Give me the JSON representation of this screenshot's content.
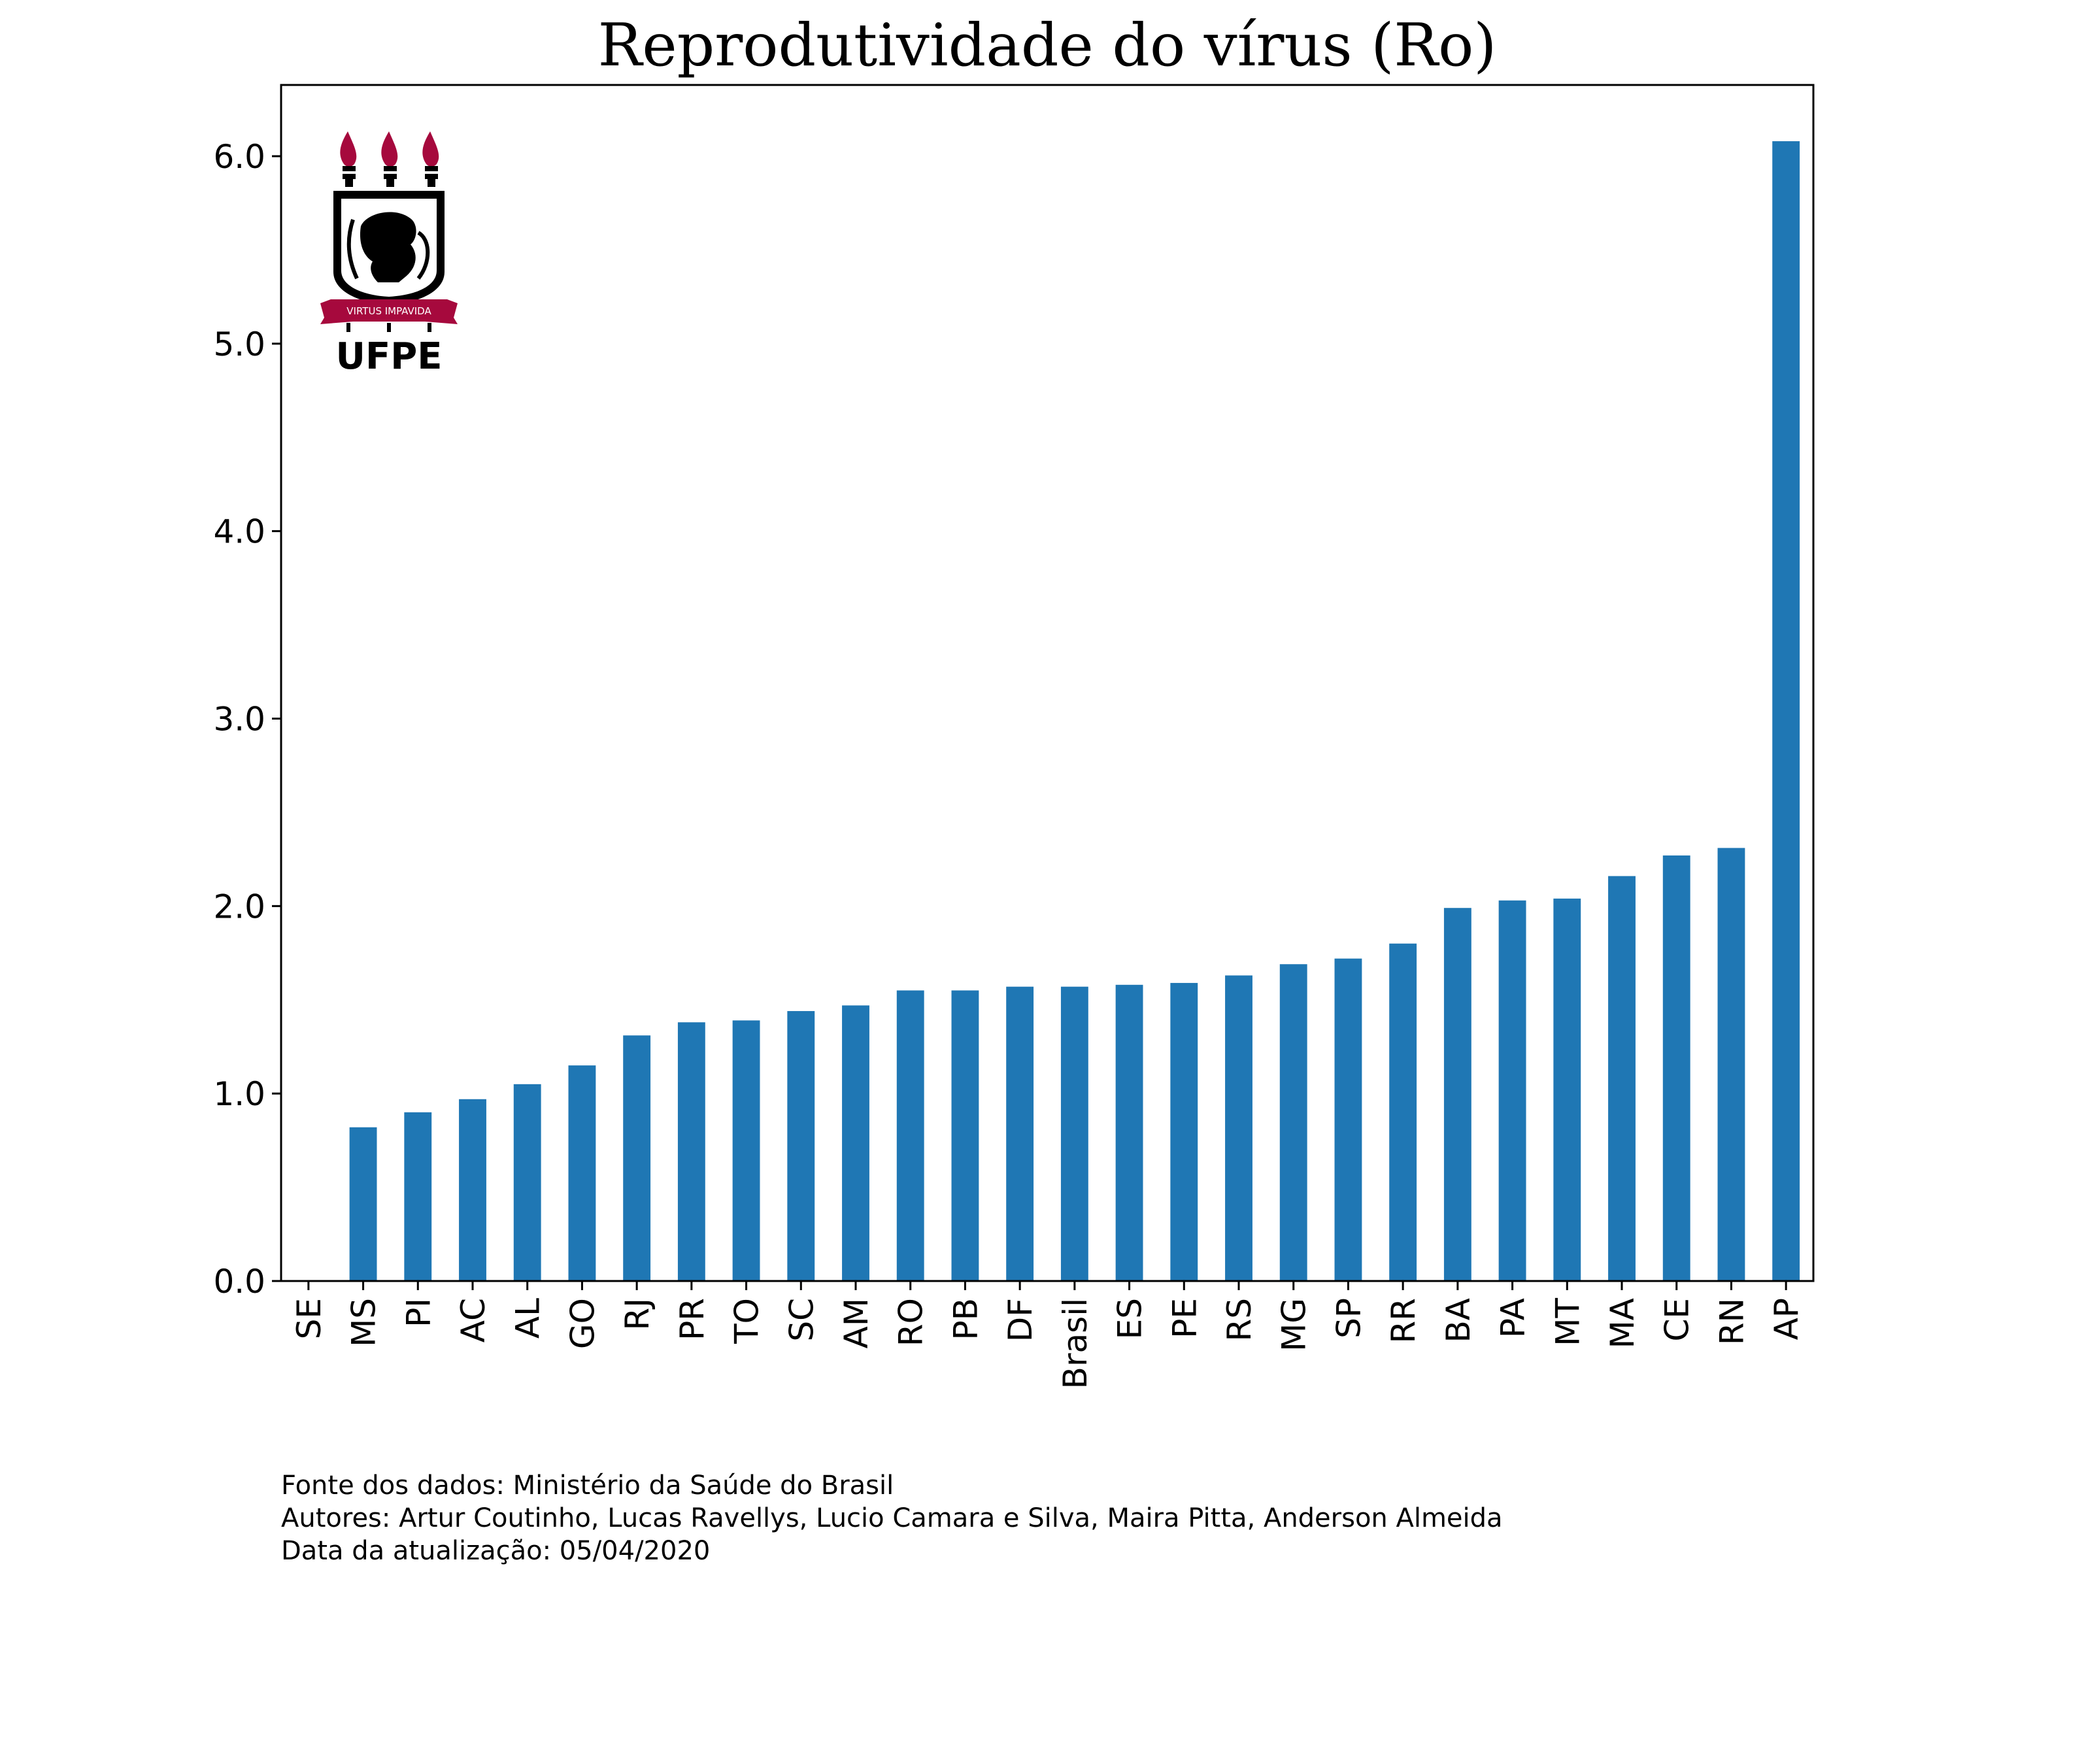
{
  "colors": {
    "bar": "#1f77b4",
    "logo_red": "#a6093d",
    "logo_black": "#000000"
  },
  "logo": {
    "motto": "VIRTUS IMPAVIDA",
    "name": "UFPE"
  },
  "footer": {
    "source": "Fonte dos dados: Ministério da Saúde do Brasil",
    "authors": "Autores: Artur Coutinho, Lucas Ravellys, Lucio Camara e Silva, Maira Pitta, Anderson Almeida",
    "updated": "Data da atualização: 05/04/2020"
  },
  "chart_data": {
    "type": "bar",
    "title": "Reprodutividade do vírus (Ro)",
    "xlabel": "",
    "ylabel": "",
    "categories": [
      "SE",
      "MS",
      "PI",
      "AC",
      "AL",
      "GO",
      "RJ",
      "PR",
      "TO",
      "SC",
      "AM",
      "RO",
      "PB",
      "DF",
      "Brasil",
      "ES",
      "PE",
      "RS",
      "MG",
      "SP",
      "RR",
      "BA",
      "PA",
      "MT",
      "MA",
      "CE",
      "RN",
      "AP"
    ],
    "values": [
      0.0,
      0.82,
      0.9,
      0.97,
      1.05,
      1.15,
      1.31,
      1.38,
      1.39,
      1.44,
      1.47,
      1.55,
      1.55,
      1.57,
      1.57,
      1.58,
      1.59,
      1.63,
      1.69,
      1.72,
      1.8,
      1.99,
      2.03,
      2.04,
      2.16,
      2.27,
      2.31,
      6.08
    ],
    "ylim": [
      0,
      6.38
    ],
    "yticks": [
      "0.0",
      "1.0",
      "2.0",
      "3.0",
      "4.0",
      "5.0",
      "6.0"
    ],
    "ytick_values": [
      0,
      1,
      2,
      3,
      4,
      5,
      6
    ],
    "grid": false,
    "legend": "none"
  }
}
